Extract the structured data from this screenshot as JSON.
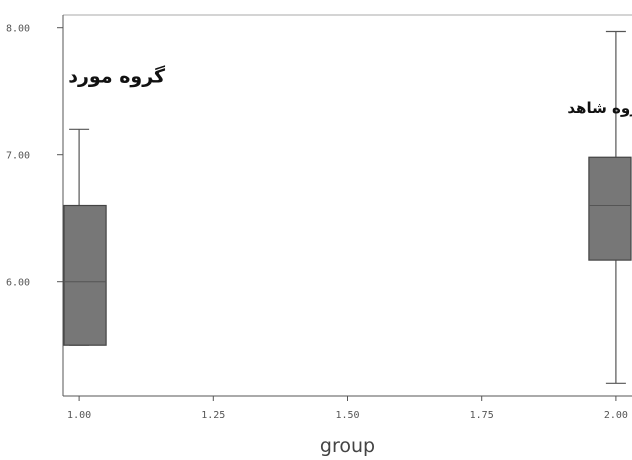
{
  "chart_data": {
    "type": "boxplot",
    "xlabel": "group",
    "ylabel": "",
    "xlim": [
      0.97,
      2.03
    ],
    "ylim": [
      5.1,
      8.1
    ],
    "x_ticks": [
      {
        "value": 1.0,
        "label": "1.00"
      },
      {
        "value": 1.25,
        "label": "1.25"
      },
      {
        "value": 1.5,
        "label": "1.50"
      },
      {
        "value": 1.75,
        "label": "1.75"
      },
      {
        "value": 2.0,
        "label": "2.00"
      }
    ],
    "y_ticks": [
      {
        "value": 6.0,
        "label": "6.00"
      },
      {
        "value": 7.0,
        "label": "7.00"
      },
      {
        "value": 8.0,
        "label": "8.00"
      }
    ],
    "boxes": [
      {
        "x": 1.0,
        "whisker_low": 5.5,
        "q1": 5.5,
        "median": 6.0,
        "q3": 6.6,
        "whisker_high": 7.2
      },
      {
        "x": 2.0,
        "whisker_low": 5.2,
        "q1": 6.17,
        "median": 6.6,
        "q3": 6.98,
        "whisker_high": 7.97
      }
    ],
    "annotations": [
      {
        "text": "گروه مورد",
        "x": 1.07,
        "y": 7.57
      },
      {
        "text": "گروه شاهد",
        "x": 1.985,
        "y": 7.33
      }
    ],
    "grid": false,
    "colors": {
      "box_fill": "#777777",
      "line": "#555555"
    }
  }
}
